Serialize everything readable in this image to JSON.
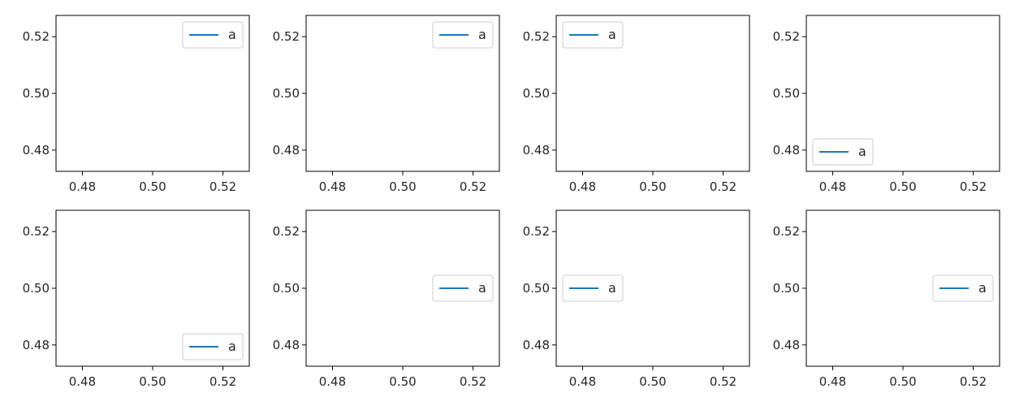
{
  "chart_data": [
    {
      "type": "line",
      "series": [
        {
          "name": "a",
          "color": "#1f77b4",
          "x": [],
          "y": []
        }
      ],
      "xlim": [
        0.4725,
        0.5275
      ],
      "ylim": [
        0.4725,
        0.5275
      ],
      "xticks": [
        "0.48",
        "0.50",
        "0.52"
      ],
      "yticks": [
        "0.48",
        "0.50",
        "0.52"
      ],
      "legend": "upper right",
      "grid": false
    },
    {
      "type": "line",
      "series": [
        {
          "name": "a",
          "color": "#1f77b4",
          "x": [],
          "y": []
        }
      ],
      "xlim": [
        0.4725,
        0.5275
      ],
      "ylim": [
        0.4725,
        0.5275
      ],
      "xticks": [
        "0.48",
        "0.50",
        "0.52"
      ],
      "yticks": [
        "0.48",
        "0.50",
        "0.52"
      ],
      "legend": "upper right",
      "grid": false
    },
    {
      "type": "line",
      "series": [
        {
          "name": "a",
          "color": "#1f77b4",
          "x": [],
          "y": []
        }
      ],
      "xlim": [
        0.4725,
        0.5275
      ],
      "ylim": [
        0.4725,
        0.5275
      ],
      "xticks": [
        "0.48",
        "0.50",
        "0.52"
      ],
      "yticks": [
        "0.48",
        "0.50",
        "0.52"
      ],
      "legend": "upper left",
      "grid": false
    },
    {
      "type": "line",
      "series": [
        {
          "name": "a",
          "color": "#1f77b4",
          "x": [],
          "y": []
        }
      ],
      "xlim": [
        0.4725,
        0.5275
      ],
      "ylim": [
        0.4725,
        0.5275
      ],
      "xticks": [
        "0.48",
        "0.50",
        "0.52"
      ],
      "yticks": [
        "0.48",
        "0.50",
        "0.52"
      ],
      "legend": "lower left",
      "grid": false
    },
    {
      "type": "line",
      "series": [
        {
          "name": "a",
          "color": "#1f77b4",
          "x": [],
          "y": []
        }
      ],
      "xlim": [
        0.4725,
        0.5275
      ],
      "ylim": [
        0.4725,
        0.5275
      ],
      "xticks": [
        "0.48",
        "0.50",
        "0.52"
      ],
      "yticks": [
        "0.48",
        "0.50",
        "0.52"
      ],
      "legend": "lower right",
      "grid": false
    },
    {
      "type": "line",
      "series": [
        {
          "name": "a",
          "color": "#1f77b4",
          "x": [],
          "y": []
        }
      ],
      "xlim": [
        0.4725,
        0.5275
      ],
      "ylim": [
        0.4725,
        0.5275
      ],
      "xticks": [
        "0.48",
        "0.50",
        "0.52"
      ],
      "yticks": [
        "0.48",
        "0.50",
        "0.52"
      ],
      "legend": "right",
      "grid": false
    },
    {
      "type": "line",
      "series": [
        {
          "name": "a",
          "color": "#1f77b4",
          "x": [],
          "y": []
        }
      ],
      "xlim": [
        0.4725,
        0.5275
      ],
      "ylim": [
        0.4725,
        0.5275
      ],
      "xticks": [
        "0.48",
        "0.50",
        "0.52"
      ],
      "yticks": [
        "0.48",
        "0.50",
        "0.52"
      ],
      "legend": "center left",
      "grid": false
    },
    {
      "type": "line",
      "series": [
        {
          "name": "a",
          "color": "#1f77b4",
          "x": [],
          "y": []
        }
      ],
      "xlim": [
        0.4725,
        0.5275
      ],
      "ylim": [
        0.4725,
        0.5275
      ],
      "xticks": [
        "0.48",
        "0.50",
        "0.52"
      ],
      "yticks": [
        "0.48",
        "0.50",
        "0.52"
      ],
      "legend": "center right",
      "grid": false
    }
  ]
}
